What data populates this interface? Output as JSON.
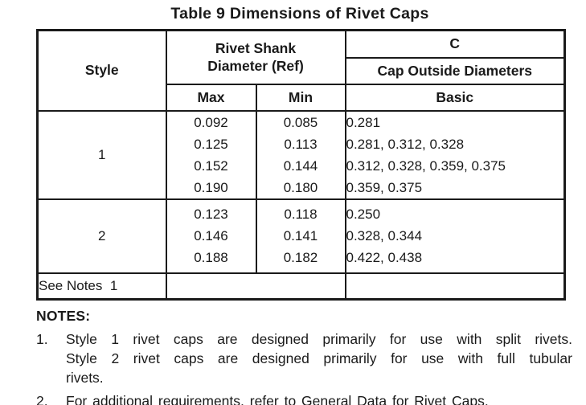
{
  "title": "Table 9 Dimensions of Rivet Caps",
  "table": {
    "headers": {
      "style": "Style",
      "rivet_shank": "Rivet Shank\nDiameter (Ref)",
      "c": "C",
      "cap_outside": "Cap Outside Diameters",
      "max": "Max",
      "min": "Min",
      "basic": "Basic"
    },
    "rows": [
      {
        "style": "1",
        "max": [
          "0.092",
          "0.125",
          "0.152",
          "0.190"
        ],
        "min": [
          "0.085",
          "0.113",
          "0.144",
          "0.180"
        ],
        "basic": [
          "0.281",
          "0.281, 0.312, 0.328",
          "0.312, 0.328, 0.359, 0.375",
          "0.359, 0.375"
        ]
      },
      {
        "style": "2",
        "max": [
          "0.123",
          "0.146",
          "0.188"
        ],
        "min": [
          "0.118",
          "0.141",
          "0.182"
        ],
        "basic": [
          "0.250",
          "0.328, 0.344",
          "0.422, 0.438"
        ]
      }
    ],
    "footer_row": {
      "label": "See Notes  1"
    }
  },
  "notes": {
    "heading": "NOTES:",
    "items": [
      {
        "number": "1.",
        "lines": [
          "Style 1 rivet caps are designed primarily for use with split rivets.",
          "Style 2 rivet caps are designed primarily for use with full tubular",
          "rivets."
        ]
      },
      {
        "number": "2.",
        "lines": [
          "For additional requirements, refer to General Data for Rivet Caps."
        ]
      }
    ]
  },
  "colors": {
    "text": "#1a1a1a",
    "border": "#1a1a1a",
    "background": "#ffffff"
  }
}
